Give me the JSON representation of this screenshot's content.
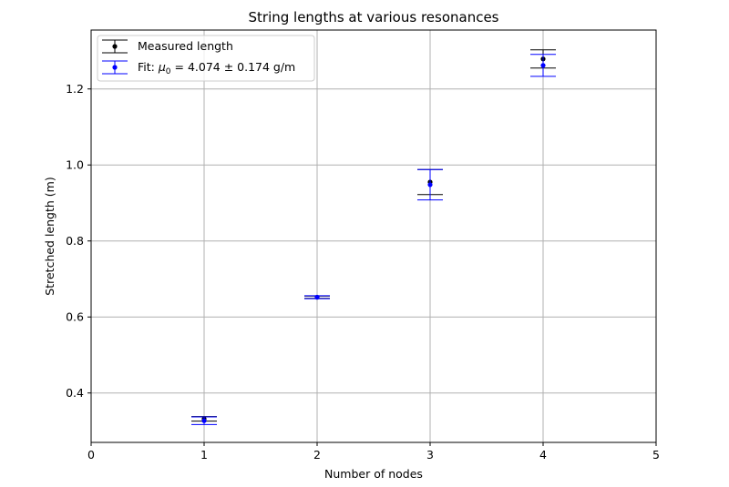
{
  "chart_data": {
    "type": "scatter",
    "title": "String lengths at various resonances",
    "xlabel": "Number of nodes",
    "ylabel": "Stretched length (m)",
    "xlim": [
      0,
      5
    ],
    "ylim": [
      0.27,
      1.355
    ],
    "xticks": [
      0,
      1,
      2,
      3,
      4,
      5
    ],
    "yticks": [
      0.4,
      0.6,
      0.8,
      1.0,
      1.2
    ],
    "xtick_labels": [
      "0",
      "1",
      "2",
      "3",
      "4",
      "5"
    ],
    "ytick_labels": [
      "0.4",
      "0.6",
      "0.8",
      "1.0",
      "1.2"
    ],
    "grid": true,
    "legend_position": "upper left",
    "series": [
      {
        "name": "Measured length",
        "color": "#000000",
        "marker": "dot",
        "points": [
          {
            "x": 1,
            "y": 0.332,
            "yerr": 0.006
          },
          {
            "x": 2,
            "y": 0.652,
            "yerr": 0.003
          },
          {
            "x": 3,
            "y": 0.955,
            "yerr": 0.033
          },
          {
            "x": 4,
            "y": 1.279,
            "yerr": 0.024
          }
        ]
      },
      {
        "name_prefix": "Fit: ",
        "name_mu": "μ",
        "name_sub": "0",
        "name_suffix": " = 4.074 ± 0.174 g/m",
        "color": "#0000ff",
        "marker": "dot",
        "points": [
          {
            "x": 1,
            "y": 0.327,
            "yerr": 0.01
          },
          {
            "x": 2,
            "y": 0.652,
            "yerr": 0.004
          },
          {
            "x": 3,
            "y": 0.948,
            "yerr": 0.04
          },
          {
            "x": 4,
            "y": 1.262,
            "yerr": 0.029
          }
        ]
      }
    ]
  }
}
